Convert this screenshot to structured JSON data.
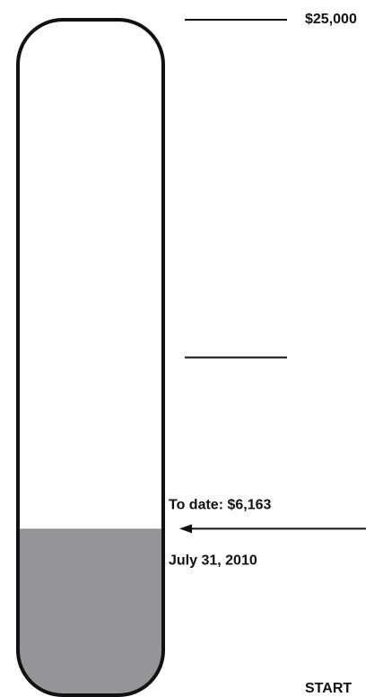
{
  "chart_data": {
    "type": "thermometer",
    "values": [
      6163
    ],
    "value_labels": [
      "To date: $6,163"
    ],
    "annotation": "July 31, 2010",
    "color": "#939598",
    "ylim": [
      0,
      25000
    ],
    "yticks": [
      {
        "value": 0,
        "label": "START"
      },
      {
        "value": 12500,
        "label": null
      },
      {
        "value": 25000,
        "label": "$25,000"
      }
    ]
  }
}
